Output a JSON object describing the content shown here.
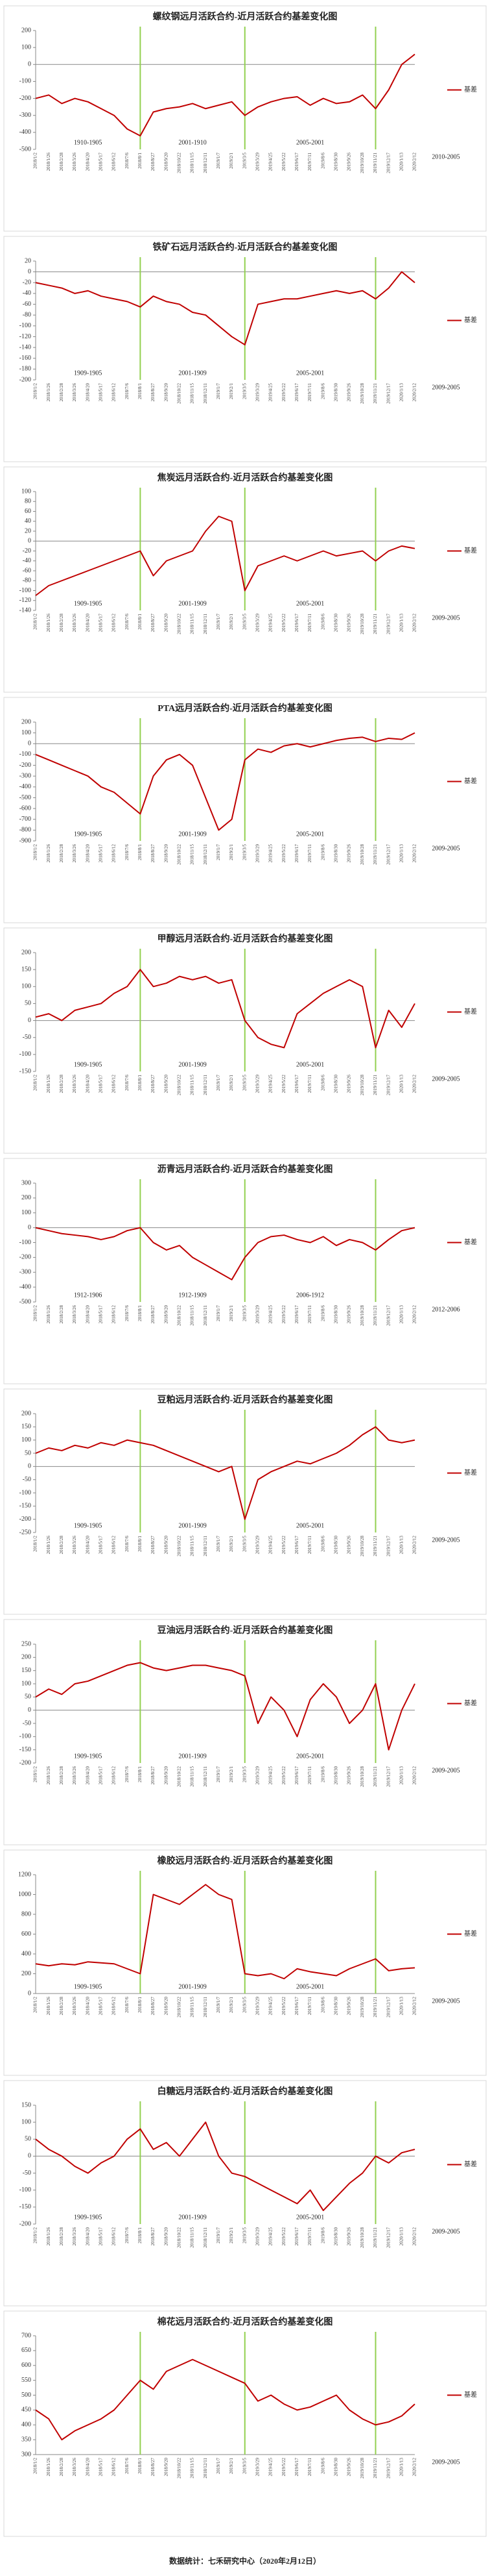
{
  "chart_data": [
    {
      "type": "line",
      "title": "螺纹钢远月活跃合约-近月活跃合约基差变化图",
      "categories": [
        "2018/1/2",
        "2018/1/26",
        "2018/2/28",
        "2018/3/26",
        "2018/4/20",
        "2018/5/17",
        "2018/6/12",
        "2018/7/6",
        "2018/8/1",
        "2018/8/27",
        "2018/9/20",
        "2018/10/22",
        "2018/11/15",
        "2018/12/11",
        "2019/1/7",
        "2019/2/1",
        "2019/3/5",
        "2019/3/29",
        "2019/4/25",
        "2019/5/22",
        "2019/6/17",
        "2019/7/11",
        "2019/8/6",
        "2019/8/30",
        "2019/9/26",
        "2019/10/28",
        "2019/11/21",
        "2019/12/17",
        "2020/1/13",
        "2020/2/12"
      ],
      "series": [
        {
          "name": "基差",
          "color": "#c00000",
          "values": [
            -200,
            -180,
            -230,
            -200,
            -220,
            -260,
            -300,
            -380,
            -420,
            -280,
            -260,
            -250,
            -230,
            -260,
            -240,
            -220,
            -300,
            -250,
            -220,
            -200,
            -190,
            -240,
            -200,
            -230,
            -220,
            -180,
            -260,
            -150,
            0,
            60
          ]
        }
      ],
      "ylim": [
        -500,
        200
      ],
      "yticks": [
        200,
        100,
        0,
        -100,
        -200,
        -300,
        -400,
        -500
      ],
      "vlines": [
        "2018/8/1",
        "2019/3/5",
        "2019/11/21"
      ],
      "vline_color": "#92d050",
      "annotations": [
        "1910-1905",
        "2001-1910",
        "2005-2001",
        "2010-2005"
      ]
    },
    {
      "type": "line",
      "title": "铁矿石远月活跃合约-近月活跃合约基差变化图",
      "categories": [
        "2018/1/2",
        "2018/1/26",
        "2018/2/28",
        "2018/3/26",
        "2018/4/20",
        "2018/5/17",
        "2018/6/12",
        "2018/7/6",
        "2018/8/1",
        "2018/8/27",
        "2018/9/20",
        "2018/10/22",
        "2018/11/15",
        "2018/12/11",
        "2019/1/7",
        "2019/2/1",
        "2019/3/5",
        "2019/3/29",
        "2019/4/25",
        "2019/5/22",
        "2019/6/17",
        "2019/7/11",
        "2019/8/6",
        "2019/8/30",
        "2019/9/26",
        "2019/10/28",
        "2019/11/21",
        "2019/12/17",
        "2020/1/13",
        "2020/2/12"
      ],
      "series": [
        {
          "name": "基差",
          "color": "#c00000",
          "values": [
            -20,
            -25,
            -30,
            -40,
            -35,
            -45,
            -50,
            -55,
            -65,
            -45,
            -55,
            -60,
            -75,
            -80,
            -100,
            -120,
            -135,
            -60,
            -55,
            -50,
            -50,
            -45,
            -40,
            -35,
            -40,
            -35,
            -50,
            -30,
            0,
            -20
          ]
        }
      ],
      "ylim": [
        -200,
        20
      ],
      "yticks": [
        20,
        0,
        -20,
        -40,
        -60,
        -80,
        -100,
        -120,
        -140,
        -160,
        -180,
        -200
      ],
      "vlines": [
        "2018/8/1",
        "2019/3/5",
        "2019/11/21"
      ],
      "vline_color": "#92d050",
      "annotations": [
        "1909-1905",
        "2001-1909",
        "2005-2001",
        "2009-2005"
      ]
    },
    {
      "type": "line",
      "title": "焦炭远月活跃合约-近月活跃合约基差变化图",
      "categories": [
        "2018/1/2",
        "2018/1/26",
        "2018/2/28",
        "2018/3/26",
        "2018/4/20",
        "2018/5/17",
        "2018/6/12",
        "2018/7/6",
        "2018/8/1",
        "2018/8/27",
        "2018/9/20",
        "2018/10/22",
        "2018/11/15",
        "2018/12/11",
        "2019/1/7",
        "2019/2/1",
        "2019/3/5",
        "2019/3/29",
        "2019/4/25",
        "2019/5/22",
        "2019/6/17",
        "2019/7/11",
        "2019/8/6",
        "2019/8/30",
        "2019/9/26",
        "2019/10/28",
        "2019/11/21",
        "2019/12/17",
        "2020/1/13",
        "2020/2/12"
      ],
      "series": [
        {
          "name": "基差",
          "color": "#c00000",
          "values": [
            -110,
            -90,
            -80,
            -70,
            -60,
            -50,
            -40,
            -30,
            -20,
            -70,
            -40,
            -30,
            -20,
            20,
            50,
            40,
            -100,
            -50,
            -40,
            -30,
            -40,
            -30,
            -20,
            -30,
            -25,
            -20,
            -40,
            -20,
            -10,
            -15
          ]
        }
      ],
      "ylim": [
        -140,
        100
      ],
      "yticks": [
        100,
        80,
        60,
        40,
        20,
        0,
        -20,
        -40,
        -60,
        -80,
        -100,
        -120,
        -140
      ],
      "vlines": [
        "2018/8/1",
        "2019/3/5",
        "2019/11/21"
      ],
      "vline_color": "#92d050",
      "annotations": [
        "1909-1905",
        "2001-1909",
        "2005-2001",
        "2009-2005"
      ]
    },
    {
      "type": "line",
      "title": "PTA远月活跃合约-近月活跃合约基差变化图",
      "categories": [
        "2018/1/2",
        "2018/1/26",
        "2018/2/28",
        "2018/3/26",
        "2018/4/20",
        "2018/5/17",
        "2018/6/12",
        "2018/7/6",
        "2018/8/1",
        "2018/8/27",
        "2018/9/20",
        "2018/10/22",
        "2018/11/15",
        "2018/12/11",
        "2019/1/7",
        "2019/2/1",
        "2019/3/5",
        "2019/3/29",
        "2019/4/25",
        "2019/5/22",
        "2019/6/17",
        "2019/7/11",
        "2019/8/6",
        "2019/8/30",
        "2019/9/26",
        "2019/10/28",
        "2019/11/21",
        "2019/12/17",
        "2020/1/13",
        "2020/2/12"
      ],
      "series": [
        {
          "name": "基差",
          "color": "#c00000",
          "values": [
            -100,
            -150,
            -200,
            -250,
            -300,
            -400,
            -450,
            -550,
            -650,
            -300,
            -150,
            -100,
            -200,
            -500,
            -800,
            -700,
            -150,
            -50,
            -80,
            -20,
            0,
            -30,
            0,
            30,
            50,
            60,
            20,
            50,
            40,
            100
          ]
        }
      ],
      "ylim": [
        -900,
        200
      ],
      "yticks": [
        200,
        100,
        0,
        -100,
        -200,
        -300,
        -400,
        -500,
        -600,
        -700,
        -800,
        -900
      ],
      "vlines": [
        "2018/8/1",
        "2019/3/5",
        "2019/11/21"
      ],
      "vline_color": "#92d050",
      "annotations": [
        "1909-1905",
        "2001-1909",
        "2005-2001",
        "2009-2005"
      ]
    },
    {
      "type": "line",
      "title": "甲醇远月活跃合约-近月活跃合约基差变化图",
      "categories": [
        "2018/1/2",
        "2018/1/26",
        "2018/2/28",
        "2018/3/26",
        "2018/4/20",
        "2018/5/17",
        "2018/6/12",
        "2018/7/6",
        "2018/8/1",
        "2018/8/27",
        "2018/9/20",
        "2018/10/22",
        "2018/11/15",
        "2018/12/11",
        "2019/1/7",
        "2019/2/1",
        "2019/3/5",
        "2019/3/29",
        "2019/4/25",
        "2019/5/22",
        "2019/6/17",
        "2019/7/11",
        "2019/8/6",
        "2019/8/30",
        "2019/9/26",
        "2019/10/28",
        "2019/11/21",
        "2019/12/17",
        "2020/1/13",
        "2020/2/12"
      ],
      "series": [
        {
          "name": "基差",
          "color": "#c00000",
          "values": [
            10,
            20,
            0,
            30,
            40,
            50,
            80,
            100,
            150,
            100,
            110,
            130,
            120,
            130,
            110,
            120,
            0,
            -50,
            -70,
            -80,
            20,
            50,
            80,
            100,
            120,
            100,
            -80,
            30,
            -20,
            50
          ]
        }
      ],
      "ylim": [
        -150,
        200
      ],
      "yticks": [
        200,
        150,
        100,
        50,
        0,
        -50,
        -100,
        -150
      ],
      "vlines": [
        "2018/8/1",
        "2019/3/5",
        "2019/11/21"
      ],
      "vline_color": "#92d050",
      "annotations": [
        "1909-1905",
        "2001-1909",
        "2005-2001",
        "2009-2005"
      ]
    },
    {
      "type": "line",
      "title": "沥青远月活跃合约-近月活跃合约基差变化图",
      "categories": [
        "2018/1/2",
        "2018/1/26",
        "2018/2/28",
        "2018/3/26",
        "2018/4/20",
        "2018/5/17",
        "2018/6/12",
        "2018/7/6",
        "2018/8/1",
        "2018/8/27",
        "2018/9/20",
        "2018/10/22",
        "2018/11/15",
        "2018/12/11",
        "2019/1/7",
        "2019/2/1",
        "2019/3/5",
        "2019/3/29",
        "2019/4/25",
        "2019/5/22",
        "2019/6/17",
        "2019/7/11",
        "2019/8/6",
        "2019/8/30",
        "2019/9/26",
        "2019/10/28",
        "2019/11/21",
        "2019/12/17",
        "2020/1/13",
        "2020/2/12"
      ],
      "series": [
        {
          "name": "基差",
          "color": "#c00000",
          "values": [
            0,
            -20,
            -40,
            -50,
            -60,
            -80,
            -60,
            -20,
            0,
            -100,
            -150,
            -120,
            -200,
            -250,
            -300,
            -350,
            -200,
            -100,
            -60,
            -50,
            -80,
            -100,
            -60,
            -120,
            -80,
            -100,
            -150,
            -80,
            -20,
            0
          ]
        }
      ],
      "ylim": [
        -500,
        300
      ],
      "yticks": [
        300,
        200,
        100,
        0,
        -100,
        -200,
        -300,
        -400,
        -500
      ],
      "vlines": [
        "2018/8/1",
        "2019/3/5",
        "2019/11/21"
      ],
      "vline_color": "#92d050",
      "annotations": [
        "1912-1906",
        "1912-1909",
        "2006-1912",
        "2012-2006"
      ]
    },
    {
      "type": "line",
      "title": "豆粕远月活跃合约-近月活跃合约基差变化图",
      "categories": [
        "2018/1/2",
        "2018/1/26",
        "2018/2/28",
        "2018/3/26",
        "2018/4/20",
        "2018/5/17",
        "2018/6/12",
        "2018/7/6",
        "2018/8/1",
        "2018/8/27",
        "2018/9/20",
        "2018/10/22",
        "2018/11/15",
        "2018/12/11",
        "2019/1/7",
        "2019/2/1",
        "2019/3/5",
        "2019/3/29",
        "2019/4/25",
        "2019/5/22",
        "2019/6/17",
        "2019/7/11",
        "2019/8/6",
        "2019/8/30",
        "2019/9/26",
        "2019/10/28",
        "2019/11/21",
        "2019/12/17",
        "2020/1/13",
        "2020/2/12"
      ],
      "series": [
        {
          "name": "基差",
          "color": "#c00000",
          "values": [
            50,
            70,
            60,
            80,
            70,
            90,
            80,
            100,
            90,
            80,
            60,
            40,
            20,
            0,
            -20,
            0,
            -200,
            -50,
            -20,
            0,
            20,
            10,
            30,
            50,
            80,
            120,
            150,
            100,
            90,
            100
          ]
        }
      ],
      "ylim": [
        -250,
        200
      ],
      "yticks": [
        200,
        150,
        100,
        50,
        0,
        -50,
        -100,
        -150,
        -200,
        -250
      ],
      "vlines": [
        "2018/8/1",
        "2019/3/5",
        "2019/11/21"
      ],
      "vline_color": "#92d050",
      "annotations": [
        "1909-1905",
        "2001-1909",
        "2005-2001",
        "2009-2005"
      ]
    },
    {
      "type": "line",
      "title": "豆油远月活跃合约-近月活跃合约基差变化图",
      "categories": [
        "2018/1/2",
        "2018/1/26",
        "2018/2/28",
        "2018/3/26",
        "2018/4/20",
        "2018/5/17",
        "2018/6/12",
        "2018/7/6",
        "2018/8/1",
        "2018/8/27",
        "2018/9/20",
        "2018/10/22",
        "2018/11/15",
        "2018/12/11",
        "2019/1/7",
        "2019/2/1",
        "2019/3/5",
        "2019/3/29",
        "2019/4/25",
        "2019/5/22",
        "2019/6/17",
        "2019/7/11",
        "2019/8/6",
        "2019/8/30",
        "2019/9/26",
        "2019/10/28",
        "2019/11/21",
        "2019/12/17",
        "2020/1/13",
        "2020/2/12"
      ],
      "series": [
        {
          "name": "基差",
          "color": "#c00000",
          "values": [
            50,
            80,
            60,
            100,
            110,
            130,
            150,
            170,
            180,
            160,
            150,
            160,
            170,
            170,
            160,
            150,
            130,
            -50,
            50,
            0,
            -100,
            40,
            100,
            50,
            -50,
            0,
            100,
            -150,
            0,
            100
          ]
        }
      ],
      "ylim": [
        -200,
        250
      ],
      "yticks": [
        250,
        200,
        150,
        100,
        50,
        0,
        -50,
        -100,
        -150,
        -200
      ],
      "vlines": [
        "2018/8/1",
        "2019/3/5",
        "2019/11/21"
      ],
      "vline_color": "#92d050",
      "annotations": [
        "1909-1905",
        "2001-1909",
        "2005-2001",
        "2009-2005"
      ]
    },
    {
      "type": "line",
      "title": "橡胶远月活跃合约-近月活跃合约基差变化图",
      "categories": [
        "2018/1/2",
        "2018/1/26",
        "2018/2/28",
        "2018/3/26",
        "2018/4/20",
        "2018/5/17",
        "2018/6/12",
        "2018/7/6",
        "2018/8/1",
        "2018/8/27",
        "2018/9/20",
        "2018/10/22",
        "2018/11/15",
        "2018/12/11",
        "2019/1/7",
        "2019/2/1",
        "2019/3/5",
        "2019/3/29",
        "2019/4/25",
        "2019/5/22",
        "2019/6/17",
        "2019/7/11",
        "2019/8/6",
        "2019/8/30",
        "2019/9/26",
        "2019/10/28",
        "2019/11/21",
        "2019/12/17",
        "2020/1/13",
        "2020/2/12"
      ],
      "series": [
        {
          "name": "基差",
          "color": "#c00000",
          "values": [
            300,
            280,
            300,
            290,
            320,
            310,
            300,
            250,
            200,
            1000,
            950,
            900,
            1000,
            1100,
            1000,
            950,
            200,
            180,
            200,
            150,
            250,
            220,
            200,
            180,
            250,
            300,
            350,
            230,
            250,
            260
          ]
        }
      ],
      "ylim": [
        0,
        1200
      ],
      "yticks": [
        1200,
        1000,
        800,
        600,
        400,
        200,
        0
      ],
      "vlines": [
        "2018/8/1",
        "2019/3/5",
        "2019/11/21"
      ],
      "vline_color": "#92d050",
      "annotations": [
        "1909-1905",
        "2001-1909",
        "2005-2001",
        "2009-2005"
      ]
    },
    {
      "type": "line",
      "title": "白糖远月活跃合约-近月活跃合约基差变化图",
      "categories": [
        "2018/1/2",
        "2018/1/26",
        "2018/2/28",
        "2018/3/26",
        "2018/4/20",
        "2018/5/17",
        "2018/6/12",
        "2018/7/6",
        "2018/8/1",
        "2018/8/27",
        "2018/9/20",
        "2018/10/22",
        "2018/11/15",
        "2018/12/11",
        "2019/1/7",
        "2019/2/1",
        "2019/3/5",
        "2019/3/29",
        "2019/4/25",
        "2019/5/22",
        "2019/6/17",
        "2019/7/11",
        "2019/8/6",
        "2019/8/30",
        "2019/9/26",
        "2019/10/28",
        "2019/11/21",
        "2019/12/17",
        "2020/1/13",
        "2020/2/12"
      ],
      "series": [
        {
          "name": "基差",
          "color": "#c00000",
          "values": [
            50,
            20,
            0,
            -30,
            -50,
            -20,
            0,
            50,
            80,
            20,
            40,
            0,
            50,
            100,
            0,
            -50,
            -60,
            -80,
            -100,
            -120,
            -140,
            -100,
            -160,
            -120,
            -80,
            -50,
            0,
            -20,
            10,
            20
          ]
        }
      ],
      "ylim": [
        -200,
        150
      ],
      "yticks": [
        150,
        100,
        50,
        0,
        -50,
        -100,
        -150,
        -200
      ],
      "vlines": [
        "2018/8/1",
        "2019/3/5",
        "2019/11/21"
      ],
      "vline_color": "#92d050",
      "annotations": [
        "1909-1905",
        "2001-1909",
        "2005-2001",
        "2009-2005"
      ]
    },
    {
      "type": "line",
      "title": "棉花远月活跃合约-近月活跃合约基差变化图",
      "categories": [
        "2018/1/2",
        "2018/1/26",
        "2018/2/28",
        "2018/3/26",
        "2018/4/20",
        "2018/5/17",
        "2018/6/12",
        "2018/7/6",
        "2018/8/1",
        "2018/8/27",
        "2018/9/20",
        "2018/10/22",
        "2018/11/15",
        "2018/12/11",
        "2019/1/7",
        "2019/2/1",
        "2019/3/5",
        "2019/3/29",
        "2019/4/25",
        "2019/5/22",
        "2019/6/17",
        "2019/7/11",
        "2019/8/6",
        "2019/8/30",
        "2019/9/26",
        "2019/10/28",
        "2019/11/21",
        "2019/12/17",
        "2020/1/13",
        "2020/2/12"
      ],
      "series": [
        {
          "name": "基差",
          "color": "#c00000",
          "values": [
            450,
            420,
            350,
            380,
            400,
            420,
            450,
            500,
            550,
            520,
            580,
            600,
            620,
            600,
            580,
            560,
            540,
            480,
            500,
            470,
            450,
            460,
            480,
            500,
            450,
            420,
            400,
            410,
            430,
            470
          ]
        }
      ],
      "ylim": [
        300,
        700
      ],
      "yticks": [
        700,
        650,
        600,
        550,
        500,
        450,
        400,
        350,
        300
      ],
      "vlines": [
        "2018/8/1",
        "2019/3/5",
        "2019/11/21"
      ],
      "vline_color": "#92d050",
      "annotations": [
        "2009-2005"
      ]
    }
  ],
  "footer": "数据统计：七禾研究中心（2020年2月12日）"
}
